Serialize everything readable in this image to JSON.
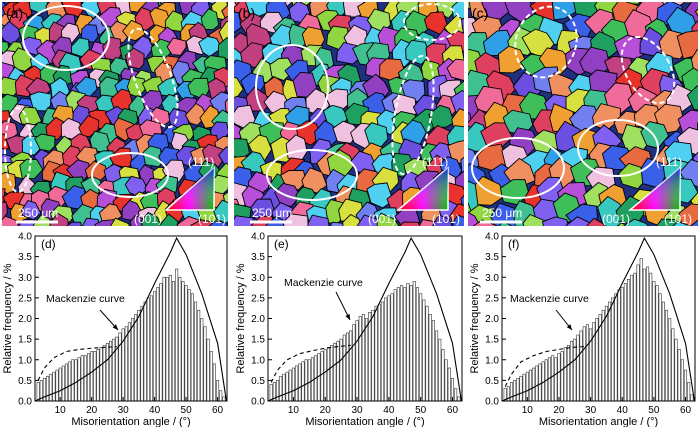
{
  "maps": [
    {
      "label": "(a)",
      "scalebar": "250 μm",
      "triangle_labels": [
        "(111)",
        "(001)",
        "(101)"
      ],
      "seed": 11,
      "grain_scale": 1.0
    },
    {
      "label": "(b)",
      "scalebar": "250 μm",
      "triangle_labels": [
        "(111)",
        "(001)",
        "(101)"
      ],
      "seed": 23,
      "grain_scale": 1.15
    },
    {
      "label": "(c)",
      "scalebar": "250 μm",
      "triangle_labels": [
        "(111)",
        "(001)",
        "(101)"
      ],
      "seed": 37,
      "grain_scale": 1.35
    }
  ],
  "colors": {
    "bar_fill": "#ffffff",
    "bar_stroke": "#333333",
    "curve": "#000000",
    "grain_boundary": "#000000",
    "ellipse": "#ffffff",
    "triangle_001": "#ff0000",
    "triangle_101": "#00c000",
    "triangle_111": "#0000ff"
  },
  "chart_data": [
    {
      "type": "bar",
      "panel_label": "(d)",
      "xlabel": "Misorientation angle / (°)",
      "ylabel": "Relative frequency / %",
      "xlim": [
        2,
        63
      ],
      "ylim": [
        0,
        4.0
      ],
      "xticks": [
        10,
        20,
        30,
        40,
        50,
        60
      ],
      "yticks": [
        0.0,
        0.5,
        1.0,
        1.5,
        2.0,
        2.5,
        3.0,
        3.5,
        4.0
      ],
      "ytick_labels": [
        "0.0",
        "0.5",
        "1.0",
        "1.5",
        "2.0",
        "2.5",
        "3.0",
        "3.5",
        "4.0"
      ],
      "annotation": "Mackenzie curve",
      "x": [
        3,
        4,
        5,
        6,
        7,
        8,
        9,
        10,
        11,
        12,
        13,
        14,
        15,
        16,
        17,
        18,
        19,
        20,
        21,
        22,
        23,
        24,
        25,
        26,
        27,
        28,
        29,
        30,
        31,
        32,
        33,
        34,
        35,
        36,
        37,
        38,
        39,
        40,
        41,
        42,
        43,
        44,
        45,
        46,
        47,
        48,
        49,
        50,
        51,
        52,
        53,
        54,
        55,
        56,
        57,
        58,
        59,
        60,
        61,
        62
      ],
      "values": [
        0.45,
        0.5,
        0.55,
        0.6,
        0.65,
        0.7,
        0.75,
        0.8,
        0.85,
        0.9,
        0.95,
        1.0,
        1.0,
        1.05,
        1.1,
        1.1,
        1.15,
        1.2,
        1.2,
        1.25,
        1.3,
        1.35,
        1.4,
        1.45,
        1.5,
        1.55,
        1.65,
        1.75,
        1.8,
        1.9,
        2.0,
        2.1,
        2.2,
        2.3,
        2.4,
        2.5,
        2.55,
        2.65,
        2.75,
        2.85,
        3.0,
        3.0,
        3.05,
        2.9,
        3.2,
        3.0,
        2.9,
        2.8,
        2.7,
        2.6,
        2.4,
        2.2,
        2.0,
        1.8,
        1.5,
        1.2,
        0.9,
        0.5,
        0.25,
        0.1
      ],
      "series": [
        {
          "name": "Mackenzie curve",
          "style": "solid",
          "x": [
            0,
            5,
            10,
            15,
            20,
            25,
            30,
            35,
            40,
            45,
            47,
            50,
            55,
            60,
            62.8
          ],
          "y": [
            0.0,
            0.1,
            0.25,
            0.45,
            0.7,
            1.0,
            1.45,
            2.05,
            2.85,
            3.6,
            3.95,
            3.55,
            2.6,
            1.4,
            0.0
          ]
        },
        {
          "name": "",
          "style": "dashed",
          "x": [
            3,
            5,
            8,
            12,
            16,
            20,
            24,
            28
          ],
          "y": [
            0.5,
            0.8,
            1.05,
            1.2,
            1.25,
            1.28,
            1.3,
            1.32
          ]
        }
      ]
    },
    {
      "type": "bar",
      "panel_label": "(e)",
      "xlabel": "Misorientation angle / (°)",
      "ylabel": "Relative frequency / %",
      "xlim": [
        2,
        63
      ],
      "ylim": [
        0,
        4.0
      ],
      "xticks": [
        10,
        20,
        30,
        40,
        50,
        60
      ],
      "yticks": [
        0.0,
        0.5,
        1.0,
        1.5,
        2.0,
        2.5,
        3.0,
        3.5,
        4.0
      ],
      "ytick_labels": [
        "0.0",
        "0.5",
        "1.0",
        "1.5",
        "2.0",
        "2.5",
        "3.0",
        "3.5",
        "4.0"
      ],
      "annotation": "Mackenzie curve",
      "x": [
        3,
        4,
        5,
        6,
        7,
        8,
        9,
        10,
        11,
        12,
        13,
        14,
        15,
        16,
        17,
        18,
        19,
        20,
        21,
        22,
        23,
        24,
        25,
        26,
        27,
        28,
        29,
        30,
        31,
        32,
        33,
        34,
        35,
        36,
        37,
        38,
        39,
        40,
        41,
        42,
        43,
        44,
        45,
        46,
        47,
        48,
        49,
        50,
        51,
        52,
        53,
        54,
        55,
        56,
        57,
        58,
        59,
        60,
        61,
        62
      ],
      "values": [
        0.4,
        0.45,
        0.5,
        0.6,
        0.65,
        0.7,
        0.75,
        0.8,
        0.85,
        0.9,
        0.95,
        1.0,
        1.0,
        1.05,
        1.1,
        1.15,
        1.2,
        1.25,
        1.3,
        1.35,
        1.4,
        1.45,
        1.5,
        1.6,
        1.65,
        1.7,
        1.85,
        1.95,
        2.05,
        2.1,
        2.0,
        2.15,
        2.2,
        2.3,
        2.35,
        2.4,
        2.5,
        2.55,
        2.6,
        2.7,
        2.75,
        2.8,
        2.75,
        2.85,
        2.8,
        2.9,
        2.75,
        2.6,
        2.45,
        2.3,
        2.1,
        1.95,
        1.7,
        1.5,
        1.25,
        1.0,
        0.8,
        0.55,
        0.3,
        0.1
      ],
      "series": [
        {
          "name": "Mackenzie curve",
          "style": "solid",
          "x": [
            0,
            5,
            10,
            15,
            20,
            25,
            30,
            35,
            40,
            45,
            47,
            50,
            55,
            60,
            62.8
          ],
          "y": [
            0.0,
            0.1,
            0.25,
            0.45,
            0.7,
            1.0,
            1.45,
            2.05,
            2.85,
            3.6,
            3.95,
            3.55,
            2.6,
            1.4,
            0.0
          ]
        },
        {
          "name": "",
          "style": "dashed",
          "x": [
            3,
            5,
            8,
            12,
            16,
            20,
            24,
            28
          ],
          "y": [
            0.45,
            0.75,
            1.0,
            1.15,
            1.22,
            1.28,
            1.32,
            1.35
          ]
        }
      ]
    },
    {
      "type": "bar",
      "panel_label": "(f)",
      "xlabel": "Misorientation angle / (°)",
      "ylabel": "Relative frequency / %",
      "xlim": [
        2,
        63
      ],
      "ylim": [
        0,
        4.0
      ],
      "xticks": [
        10,
        20,
        30,
        40,
        50,
        60
      ],
      "yticks": [
        0.0,
        0.5,
        1.0,
        1.5,
        2.0,
        2.5,
        3.0,
        3.5,
        4.0
      ],
      "ytick_labels": [
        "0.0",
        "0.5",
        "1.0",
        "1.5",
        "2.0",
        "2.5",
        "3.0",
        "3.5",
        "4.0"
      ],
      "annotation": "Mackenzie curve",
      "x": [
        3,
        4,
        5,
        6,
        7,
        8,
        9,
        10,
        11,
        12,
        13,
        14,
        15,
        16,
        17,
        18,
        19,
        20,
        21,
        22,
        23,
        24,
        25,
        26,
        27,
        28,
        29,
        30,
        31,
        32,
        33,
        34,
        35,
        36,
        37,
        38,
        39,
        40,
        41,
        42,
        43,
        44,
        45,
        46,
        47,
        48,
        49,
        50,
        51,
        52,
        53,
        54,
        55,
        56,
        57,
        58,
        59,
        60,
        61,
        62
      ],
      "values": [
        0.3,
        0.35,
        0.45,
        0.5,
        0.55,
        0.6,
        0.65,
        0.7,
        0.75,
        0.8,
        0.85,
        0.9,
        0.95,
        1.0,
        1.05,
        1.1,
        1.05,
        1.15,
        1.2,
        1.3,
        1.35,
        1.45,
        1.5,
        1.6,
        1.7,
        1.8,
        1.85,
        1.75,
        1.9,
        2.0,
        2.1,
        2.2,
        2.3,
        2.4,
        2.5,
        2.6,
        2.7,
        2.75,
        2.85,
        2.95,
        3.05,
        3.1,
        3.3,
        3.45,
        3.2,
        3.25,
        3.1,
        2.9,
        2.8,
        2.6,
        2.4,
        2.2,
        2.0,
        1.75,
        1.5,
        1.25,
        1.0,
        0.75,
        0.45,
        0.15
      ],
      "series": [
        {
          "name": "Mackenzie curve",
          "style": "solid",
          "x": [
            0,
            5,
            10,
            15,
            20,
            25,
            30,
            35,
            40,
            45,
            47,
            50,
            55,
            60,
            62.8
          ],
          "y": [
            0.0,
            0.1,
            0.25,
            0.45,
            0.7,
            1.0,
            1.45,
            2.05,
            2.85,
            3.6,
            3.95,
            3.55,
            2.6,
            1.4,
            0.0
          ]
        },
        {
          "name": "",
          "style": "dashed",
          "x": [
            3,
            5,
            8,
            12,
            16,
            20,
            24,
            28
          ],
          "y": [
            0.35,
            0.65,
            0.95,
            1.1,
            1.2,
            1.25,
            1.3,
            1.32
          ]
        }
      ]
    }
  ]
}
